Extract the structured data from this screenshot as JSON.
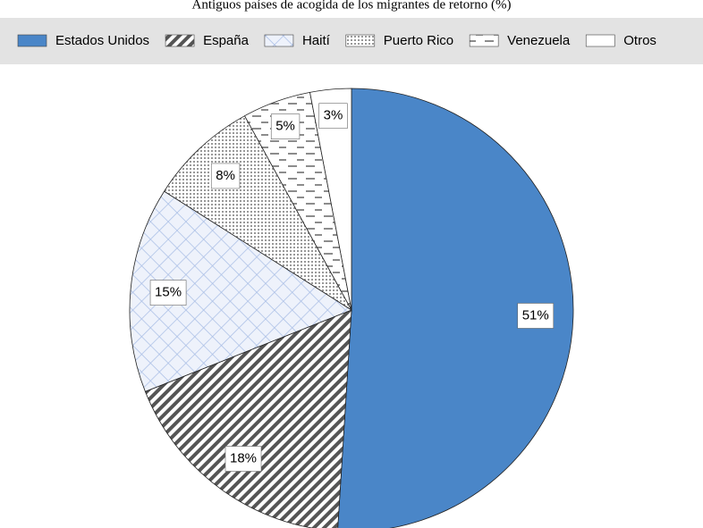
{
  "chart_data": {
    "type": "pie",
    "title": "Antiguos países de acogida de los migrantes de retorno (%)",
    "categories": [
      "Estados Unidos",
      "España",
      "Haití",
      "Puerto Rico",
      "Venezuela",
      "Otros"
    ],
    "values": [
      51,
      18,
      15,
      8,
      5,
      3
    ],
    "value_labels": [
      "51%",
      "18%",
      "15%",
      "8%",
      "5%",
      "3%"
    ],
    "colors": [
      "#4a86c8",
      "#555555",
      "#aabfe6",
      "#999999",
      "#666666",
      "#ffffff"
    ],
    "patterns": [
      "solid",
      "stripes",
      "crosshatch",
      "dots",
      "dashes",
      "solid"
    ],
    "legend": "top"
  }
}
